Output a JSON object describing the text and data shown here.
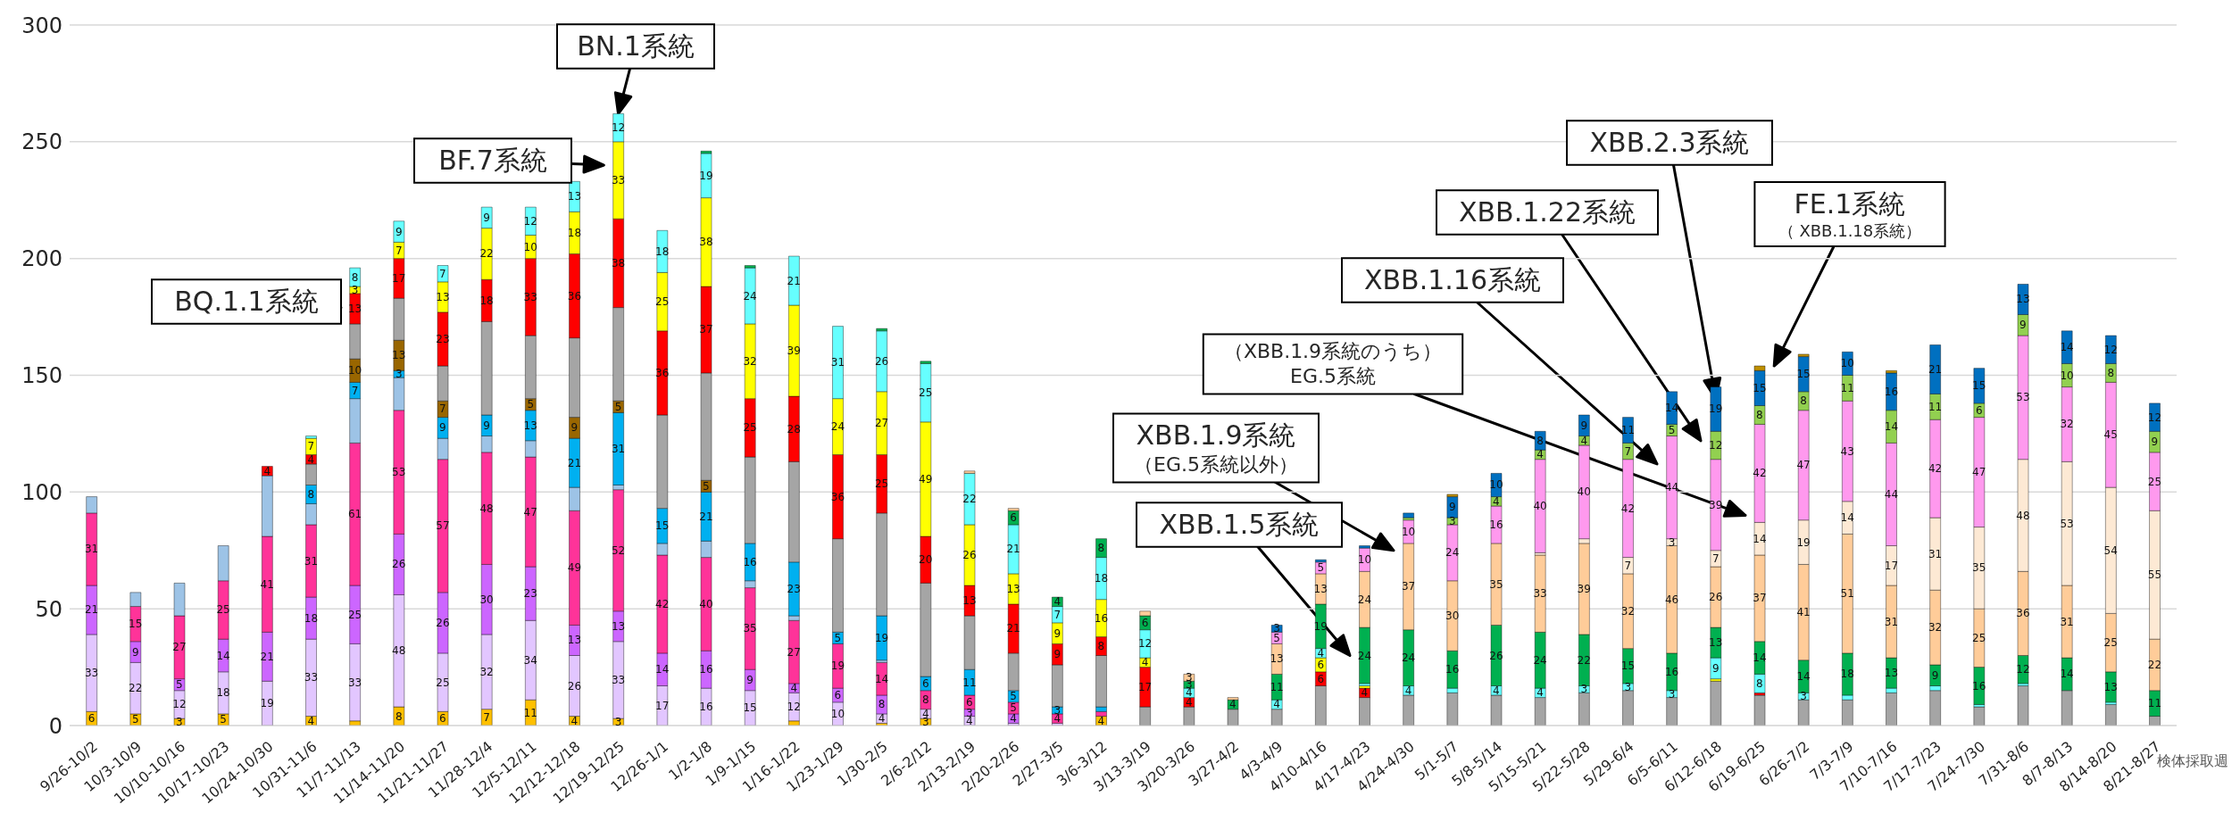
{
  "chart_data": {
    "type": "bar",
    "stacked": true,
    "grid": "y",
    "xlabel": "検体採取週",
    "ylim": [
      0,
      300
    ],
    "yticks": [
      0,
      50,
      100,
      150,
      200,
      250,
      300
    ],
    "categories": [
      "9/26-10/2",
      "10/3-10/9",
      "10/10-10/16",
      "10/17-10/23",
      "10/24-10/30",
      "10/31-11/6",
      "11/7-11/13",
      "11/14-11/20",
      "11/21-11/27",
      "11/28-12/4",
      "12/5-12/11",
      "12/12-12/18",
      "12/19-12/25",
      "12/26-1/1",
      "1/2-1/8",
      "1/9-1/15",
      "1/16-1/22",
      "1/23-1/29",
      "1/30-2/5",
      "2/6-2/12",
      "2/13-2/19",
      "2/20-2/26",
      "2/27-3/5",
      "3/6-3/12",
      "3/13-3/19",
      "3/20-3/26",
      "3/27-4/2",
      "4/3-4/9",
      "4/10-4/16",
      "4/17-4/23",
      "4/24-4/30",
      "5/1-5/7",
      "5/8-5/14",
      "5/15-5/21",
      "5/22-5/28",
      "5/29-6/4",
      "6/5-6/11",
      "6/12-6/18",
      "6/19-6/25",
      "6/26-7/2",
      "7/3-7/9",
      "7/10-7/16",
      "7/17-7/23",
      "7/24-7/30",
      "7/31-8/6",
      "8/7-8/13",
      "8/14-8/20",
      "8/21-8/27"
    ],
    "series": [
      {
        "color": "#ffc000",
        "values": [
          6,
          5,
          3,
          5,
          null,
          4,
          2,
          8,
          6,
          7,
          11,
          4,
          3,
          null,
          null,
          null,
          2,
          null,
          1,
          3,
          null,
          null,
          null,
          4,
          null,
          null,
          null,
          null,
          null,
          null,
          null,
          null,
          null,
          null,
          null,
          null,
          null,
          null,
          null,
          null,
          null,
          null,
          null,
          null,
          null,
          null,
          null,
          null
        ],
        "value_labels": [
          "6",
          "5",
          "3",
          "5",
          null,
          "4",
          null,
          "8",
          "6",
          "7",
          "11",
          "4",
          "3",
          null,
          null,
          null,
          null,
          null,
          null,
          "3",
          null,
          null,
          null,
          "4",
          null,
          null,
          null,
          null,
          null,
          null,
          null,
          null,
          null,
          null,
          null,
          null,
          null,
          null,
          null,
          null,
          null,
          null,
          null,
          null,
          null,
          null,
          null,
          null
        ]
      },
      {
        "color": "#e2c6ff",
        "values": [
          33,
          22,
          12,
          18,
          19,
          33,
          33,
          48,
          25,
          32,
          34,
          26,
          33,
          17,
          16,
          15,
          12,
          10,
          4,
          4,
          4,
          1,
          1,
          null,
          null,
          null,
          null,
          null,
          null,
          null,
          null,
          null,
          null,
          null,
          null,
          null,
          null,
          null,
          null,
          null,
          null,
          null,
          null,
          null,
          null,
          null,
          null,
          null
        ],
        "value_labels": [
          "33",
          "22",
          "12",
          "18",
          "19",
          "33",
          "33",
          "48",
          "25",
          "32",
          "34",
          "26",
          "33",
          "17",
          "16",
          "15",
          "12",
          "10",
          "4",
          "4",
          "4",
          null,
          null,
          null,
          null,
          null,
          null,
          null,
          null,
          null,
          null,
          null,
          null,
          null,
          null,
          null,
          null,
          null,
          null,
          null,
          null,
          null,
          null,
          null,
          null,
          null,
          null,
          null
        ]
      },
      {
        "color": "#cc66ff",
        "values": [
          21,
          9,
          5,
          14,
          21,
          18,
          25,
          26,
          26,
          30,
          23,
          13,
          13,
          14,
          16,
          9,
          4,
          6,
          8,
          null,
          3,
          4,
          null,
          null,
          null,
          null,
          null,
          null,
          null,
          null,
          null,
          null,
          null,
          null,
          null,
          null,
          null,
          null,
          null,
          null,
          null,
          null,
          null,
          null,
          null,
          null,
          null,
          null
        ],
        "value_labels": [
          "21",
          "9",
          "5",
          "14",
          "21",
          "18",
          "25",
          "26",
          "26",
          "30",
          "23",
          "13",
          "13",
          "14",
          "16",
          "9",
          "4",
          "6",
          "8",
          null,
          "3",
          "4",
          null,
          null,
          null,
          null,
          null,
          null,
          null,
          null,
          null,
          null,
          null,
          null,
          null,
          null,
          null,
          null,
          null,
          null,
          null,
          null,
          null,
          null,
          null,
          null,
          null,
          null
        ]
      },
      {
        "color": "#ff3399",
        "values": [
          31,
          15,
          27,
          25,
          41,
          31,
          61,
          53,
          57,
          48,
          47,
          49,
          52,
          42,
          40,
          35,
          27,
          19,
          14,
          8,
          6,
          5,
          4,
          2,
          null,
          null,
          null,
          null,
          null,
          null,
          null,
          null,
          null,
          null,
          null,
          null,
          null,
          null,
          null,
          null,
          null,
          null,
          null,
          null,
          null,
          null,
          null,
          null
        ],
        "value_labels": [
          "31",
          "15",
          "27",
          "25",
          "41",
          "31",
          "61",
          "53",
          "57",
          "48",
          "47",
          "49",
          "52",
          "42",
          "40",
          "35",
          "27",
          "19",
          "14",
          "8",
          "6",
          "5",
          "4",
          null,
          null,
          null,
          null,
          null,
          null,
          null,
          null,
          null,
          null,
          null,
          null,
          null,
          null,
          null,
          null,
          null,
          null,
          null,
          null,
          null,
          null,
          null,
          null,
          null
        ]
      },
      {
        "color": "#9dc3e6",
        "values": [
          7,
          6,
          14,
          15,
          26,
          9,
          19,
          14,
          9,
          7,
          7,
          10,
          2,
          5,
          7,
          3,
          2,
          null,
          1,
          null,
          null,
          null,
          null,
          null,
          null,
          null,
          null,
          null,
          null,
          null,
          null,
          null,
          null,
          null,
          null,
          null,
          null,
          null,
          null,
          null,
          null,
          null,
          null,
          null,
          null,
          null,
          null,
          null
        ],
        "value_labels": [
          null,
          null,
          null,
          null,
          null,
          null,
          null,
          null,
          null,
          null,
          null,
          null,
          null,
          null,
          null,
          null,
          null,
          null,
          null,
          null,
          null,
          null,
          null,
          null,
          null,
          null,
          null,
          null,
          null,
          null,
          null,
          null,
          null,
          null,
          null,
          null,
          null,
          null,
          null,
          null,
          null,
          null,
          null,
          null,
          null,
          null,
          null,
          null
        ]
      },
      {
        "color": "#00b0f0",
        "values": [
          null,
          null,
          null,
          null,
          null,
          8,
          7,
          3,
          9,
          9,
          13,
          21,
          31,
          15,
          21,
          16,
          23,
          5,
          19,
          6,
          11,
          5,
          3,
          2,
          null,
          null,
          null,
          null,
          null,
          null,
          null,
          null,
          null,
          null,
          null,
          null,
          null,
          null,
          null,
          null,
          null,
          null,
          null,
          null,
          null,
          null,
          null,
          null
        ],
        "value_labels": [
          null,
          null,
          null,
          null,
          null,
          "8",
          "7",
          "3",
          "9",
          "9",
          "13",
          "21",
          "31",
          "15",
          "21",
          "16",
          "23",
          "5",
          "19",
          "6",
          "11",
          "5",
          "3",
          null,
          null,
          null,
          null,
          null,
          null,
          null,
          null,
          null,
          null,
          null,
          null,
          null,
          null,
          null,
          null,
          null,
          null,
          null,
          null,
          null,
          null,
          null,
          null,
          null
        ]
      },
      {
        "color": "#996600",
        "values": [
          null,
          null,
          null,
          null,
          null,
          null,
          10,
          13,
          7,
          null,
          5,
          9,
          5,
          null,
          5,
          null,
          null,
          null,
          null,
          null,
          null,
          null,
          null,
          null,
          null,
          null,
          null,
          null,
          null,
          null,
          null,
          null,
          null,
          null,
          null,
          null,
          null,
          null,
          null,
          null,
          null,
          null,
          null,
          null,
          null,
          null,
          null,
          null
        ],
        "value_labels": [
          null,
          null,
          null,
          null,
          null,
          null,
          "10",
          "13",
          "7",
          null,
          "5",
          "9",
          "5",
          null,
          "5",
          null,
          null,
          null,
          null,
          null,
          null,
          null,
          null,
          null,
          null,
          null,
          null,
          null,
          null,
          null,
          null,
          null,
          null,
          null,
          null,
          null,
          null,
          null,
          null,
          null,
          null,
          null,
          null,
          null,
          null,
          null,
          null,
          null
        ]
      },
      {
        "color": "#a5a5a5",
        "values": [
          null,
          null,
          null,
          null,
          null,
          9,
          15,
          18,
          15,
          40,
          27,
          34,
          40,
          40,
          46,
          37,
          43,
          40,
          44,
          40,
          23,
          16,
          18,
          22,
          8,
          8,
          7,
          7,
          17,
          12,
          13,
          14,
          13,
          12,
          14,
          15,
          12,
          19,
          13,
          11,
          11,
          14,
          15,
          8,
          17,
          15,
          9,
          4
        ],
        "value_labels": [
          null,
          null,
          null,
          null,
          null,
          null,
          null,
          null,
          null,
          null,
          null,
          null,
          null,
          null,
          null,
          null,
          null,
          null,
          null,
          null,
          null,
          null,
          null,
          null,
          null,
          null,
          null,
          null,
          null,
          null,
          null,
          null,
          null,
          null,
          null,
          null,
          null,
          null,
          null,
          null,
          null,
          null,
          null,
          null,
          null,
          null,
          null,
          null
        ]
      },
      {
        "color": "#ff0000",
        "values": [
          null,
          null,
          null,
          null,
          4,
          4,
          13,
          17,
          23,
          18,
          33,
          36,
          38,
          36,
          37,
          25,
          28,
          36,
          25,
          20,
          13,
          21,
          9,
          8,
          17,
          4,
          null,
          null,
          6,
          4,
          null,
          null,
          null,
          null,
          null,
          null,
          null,
          null,
          1,
          null,
          null,
          null,
          null,
          null,
          null,
          null,
          null,
          null
        ],
        "value_labels": [
          null,
          null,
          null,
          null,
          "4",
          "4",
          "13",
          "17",
          "23",
          "18",
          "33",
          "36",
          "38",
          "36",
          "37",
          "25",
          "28",
          "36",
          "25",
          "20",
          "13",
          "21",
          "9",
          "8",
          "17",
          "4",
          null,
          null,
          "6",
          "4",
          null,
          null,
          null,
          null,
          null,
          null,
          null,
          null,
          null,
          null,
          null,
          null,
          null,
          null,
          null,
          null,
          null,
          null
        ]
      },
      {
        "color": "#ffff00",
        "values": [
          null,
          null,
          null,
          null,
          null,
          7,
          3,
          7,
          13,
          22,
          10,
          18,
          33,
          25,
          38,
          32,
          39,
          24,
          27,
          49,
          26,
          13,
          9,
          16,
          4,
          null,
          null,
          null,
          6,
          1,
          null,
          null,
          null,
          null,
          null,
          null,
          null,
          1,
          null,
          null,
          null,
          null,
          null,
          null,
          null,
          null,
          null,
          null
        ],
        "value_labels": [
          null,
          null,
          null,
          null,
          null,
          "7",
          "3",
          "7",
          "13",
          "22",
          "10",
          "18",
          "33",
          "25",
          "38",
          "32",
          "39",
          "24",
          "27",
          "49",
          "26",
          "13",
          "9",
          "16",
          "4",
          null,
          null,
          null,
          "6",
          null,
          null,
          null,
          null,
          null,
          null,
          null,
          null,
          null,
          null,
          null,
          null,
          null,
          null,
          null,
          null,
          null,
          null,
          null
        ]
      },
      {
        "color": "#66ffff",
        "values": [
          null,
          null,
          null,
          null,
          null,
          1,
          8,
          9,
          7,
          9,
          12,
          13,
          12,
          18,
          19,
          24,
          21,
          31,
          26,
          25,
          22,
          21,
          7,
          18,
          12,
          4,
          null,
          4,
          4,
          1,
          4,
          2,
          4,
          4,
          3,
          3,
          3,
          9,
          8,
          3,
          2,
          2,
          2,
          1,
          1,
          null,
          1,
          null
        ],
        "value_labels": [
          null,
          null,
          null,
          null,
          null,
          null,
          "8",
          "9",
          "7",
          "9",
          "12",
          "13",
          "12",
          "18",
          "19",
          "24",
          "21",
          "31",
          "26",
          "25",
          "22",
          "21",
          "7",
          "18",
          "12",
          "4",
          null,
          "4",
          "4",
          null,
          "4",
          null,
          "4",
          "4",
          "3",
          "3",
          "3",
          "9",
          "8",
          "3",
          null,
          null,
          null,
          null,
          null,
          null,
          null,
          null
        ]
      },
      {
        "color": "#00b050",
        "values": [
          null,
          null,
          null,
          null,
          null,
          null,
          null,
          null,
          null,
          null,
          null,
          null,
          null,
          null,
          1,
          1,
          null,
          null,
          1,
          1,
          null,
          6,
          4,
          8,
          6,
          3,
          4,
          11,
          19,
          24,
          24,
          16,
          26,
          24,
          22,
          15,
          16,
          13,
          14,
          14,
          18,
          13,
          9,
          16,
          12,
          14,
          13,
          11
        ],
        "value_labels": [
          null,
          null,
          null,
          null,
          null,
          null,
          null,
          null,
          null,
          null,
          null,
          null,
          null,
          null,
          null,
          null,
          null,
          null,
          null,
          null,
          null,
          "6",
          "4",
          "8",
          "6",
          "3",
          "4",
          "11",
          "19",
          "24",
          "24",
          "16",
          "26",
          "24",
          "22",
          "15",
          "16",
          "13",
          "14",
          "14",
          "18",
          "13",
          "9",
          "16",
          "12",
          "14",
          "13",
          "11"
        ]
      },
      {
        "color": "#ffcc99",
        "values": [
          null,
          null,
          null,
          null,
          null,
          null,
          null,
          null,
          null,
          null,
          null,
          null,
          null,
          null,
          null,
          null,
          null,
          null,
          null,
          null,
          1,
          1,
          null,
          null,
          2,
          3,
          1,
          13,
          13,
          24,
          37,
          30,
          35,
          33,
          39,
          32,
          46,
          26,
          37,
          41,
          51,
          31,
          32,
          25,
          36,
          31,
          25,
          22
        ],
        "value_labels": [
          null,
          null,
          null,
          null,
          null,
          null,
          null,
          null,
          null,
          null,
          null,
          null,
          null,
          null,
          null,
          null,
          null,
          null,
          null,
          null,
          null,
          null,
          null,
          null,
          null,
          "3",
          null,
          "13",
          "13",
          "24",
          "37",
          "30",
          "35",
          "33",
          "39",
          "32",
          "46",
          "26",
          "37",
          "41",
          "51",
          "31",
          "32",
          "25",
          "36",
          "31",
          "25",
          "22"
        ]
      },
      {
        "color": "#fde9d4",
        "values": [
          null,
          null,
          null,
          null,
          null,
          null,
          null,
          null,
          null,
          null,
          null,
          null,
          null,
          null,
          null,
          null,
          null,
          null,
          null,
          null,
          null,
          null,
          null,
          null,
          null,
          null,
          null,
          null,
          null,
          null,
          null,
          null,
          null,
          1,
          2,
          7,
          3,
          7,
          14,
          19,
          14,
          17,
          31,
          35,
          48,
          53,
          54,
          55
        ],
        "value_labels": [
          null,
          null,
          null,
          null,
          null,
          null,
          null,
          null,
          null,
          null,
          null,
          null,
          null,
          null,
          null,
          null,
          null,
          null,
          null,
          null,
          null,
          null,
          null,
          null,
          null,
          null,
          null,
          null,
          null,
          null,
          null,
          null,
          null,
          null,
          null,
          "7",
          "3",
          "7",
          "14",
          "19",
          "14",
          "17",
          "31",
          "35",
          "48",
          "53",
          "54",
          "55"
        ]
      },
      {
        "color": "#ff99ee",
        "values": [
          null,
          null,
          null,
          null,
          null,
          null,
          null,
          null,
          null,
          null,
          null,
          null,
          null,
          null,
          null,
          null,
          null,
          null,
          null,
          null,
          null,
          null,
          null,
          null,
          null,
          null,
          null,
          5,
          5,
          10,
          10,
          24,
          16,
          40,
          40,
          42,
          44,
          39,
          42,
          47,
          43,
          44,
          42,
          47,
          53,
          32,
          45,
          25
        ],
        "value_labels": [
          null,
          null,
          null,
          null,
          null,
          null,
          null,
          null,
          null,
          null,
          null,
          null,
          null,
          null,
          null,
          null,
          null,
          null,
          null,
          null,
          null,
          null,
          null,
          null,
          null,
          null,
          null,
          "5",
          "5",
          "10",
          "10",
          "24",
          "16",
          "40",
          "40",
          "42",
          "44",
          "39",
          "42",
          "47",
          "43",
          "44",
          "42",
          "47",
          "53",
          "32",
          "45",
          "25"
        ]
      },
      {
        "color": "#92d050",
        "values": [
          null,
          null,
          null,
          null,
          null,
          null,
          null,
          null,
          null,
          null,
          null,
          null,
          null,
          null,
          null,
          null,
          null,
          null,
          null,
          null,
          null,
          null,
          null,
          null,
          null,
          null,
          null,
          null,
          null,
          null,
          1,
          3,
          4,
          4,
          4,
          7,
          5,
          12,
          8,
          8,
          11,
          14,
          11,
          6,
          9,
          10,
          8,
          9
        ],
        "value_labels": [
          null,
          null,
          null,
          null,
          null,
          null,
          null,
          null,
          null,
          null,
          null,
          null,
          null,
          null,
          null,
          null,
          null,
          null,
          null,
          null,
          null,
          null,
          null,
          null,
          null,
          null,
          null,
          null,
          null,
          null,
          null,
          "3",
          "4",
          "4",
          "4",
          "7",
          "5",
          "12",
          "8",
          "8",
          "11",
          "14",
          "11",
          "6",
          "9",
          "10",
          "8",
          "9"
        ]
      },
      {
        "color": "#0070c0",
        "values": [
          null,
          null,
          null,
          null,
          null,
          null,
          null,
          null,
          null,
          null,
          null,
          null,
          null,
          null,
          null,
          null,
          null,
          null,
          null,
          null,
          null,
          null,
          null,
          null,
          null,
          null,
          null,
          3,
          1,
          1,
          2,
          9,
          10,
          8,
          9,
          11,
          14,
          19,
          15,
          15,
          10,
          16,
          21,
          15,
          13,
          14,
          12,
          12
        ],
        "value_labels": [
          null,
          null,
          null,
          null,
          null,
          null,
          null,
          null,
          null,
          null,
          null,
          null,
          null,
          null,
          null,
          null,
          null,
          null,
          null,
          null,
          null,
          null,
          null,
          null,
          null,
          null,
          null,
          "3",
          null,
          null,
          null,
          "9",
          "10",
          "8",
          "9",
          "11",
          "14",
          "19",
          "15",
          "15",
          "10",
          "16",
          "21",
          "15",
          "13",
          "14",
          "12",
          "12"
        ]
      },
      {
        "color": "#bf9000",
        "values": [
          null,
          null,
          null,
          null,
          null,
          null,
          null,
          null,
          null,
          null,
          null,
          null,
          null,
          null,
          null,
          null,
          null,
          null,
          null,
          null,
          null,
          null,
          null,
          null,
          null,
          null,
          null,
          null,
          null,
          null,
          null,
          1,
          null,
          null,
          null,
          null,
          null,
          null,
          2,
          1,
          null,
          1,
          null,
          null,
          null,
          null,
          null,
          null
        ],
        "value_labels": [
          null,
          null,
          null,
          null,
          null,
          null,
          null,
          null,
          null,
          null,
          null,
          null,
          null,
          null,
          null,
          null,
          null,
          null,
          null,
          null,
          null,
          null,
          null,
          null,
          null,
          null,
          null,
          null,
          null,
          null,
          null,
          null,
          null,
          null,
          null,
          null,
          null,
          null,
          null,
          null,
          null,
          null,
          null,
          null,
          null,
          null,
          null,
          null
        ]
      }
    ],
    "annotations": [
      {
        "text": "BQ.1.1系統",
        "x": "11/7-11/13",
        "y": 179
      },
      {
        "text": "BF.7系統",
        "x": "12/19-12/25",
        "y": 240
      },
      {
        "text": "BN.1系統",
        "x": "12/19-12/25",
        "y": 262
      },
      "XBB.1.5系統",
      "XBB.1.9系統（EG.5系統以外）",
      "（XBB.1.9系統のうち）EG.5系統",
      "XBB.1.16系統",
      "XBB.1.22系統",
      "XBB.2.3系統",
      "FE.1系統（ XBB.1.18系統）"
    ]
  }
}
